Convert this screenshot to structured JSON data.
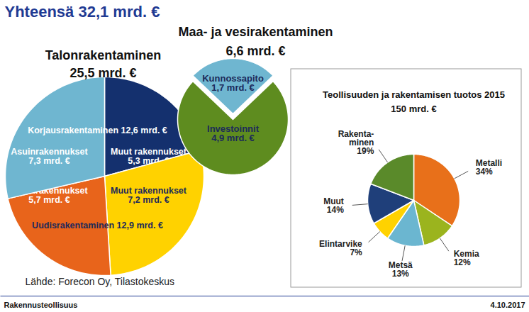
{
  "page": {
    "title": "Yhteensä 32,1 mrd. €",
    "source": "Lähde: Forecon Oy, Tilastokeskus",
    "footer": "Rakennusteollisuus",
    "date": "4.10.2017"
  },
  "chart_data": [
    {
      "type": "pie",
      "title": "Talonrakentaminen",
      "subtitle": "25,5 mrd. €",
      "categories": [
        "Muut rakennukset",
        "Muut rakennukset",
        "Asuinrakennukset",
        "Asuinrakennukset"
      ],
      "values": [
        5.3,
        7.2,
        5.7,
        7.3
      ],
      "value_labels": [
        "5,3 mrd. €",
        "7,2 mrd. €",
        "5,7 mrd. €",
        "7,3 mrd. €"
      ],
      "colors": [
        "#14306e",
        "#ffd200",
        "#e8641b",
        "#6fb6d0"
      ],
      "data_labels": true,
      "groups": [
        {
          "name": "Korjausrakentaminen",
          "label": "12,6 mrd. €"
        },
        {
          "name": "Uudisrakentaminen",
          "label": "12,9 mrd. €"
        }
      ]
    },
    {
      "type": "pie",
      "title": "Maa- ja vesirakentaminen",
      "subtitle": "6,6 mrd. €",
      "categories": [
        "Kunnossapito",
        "Investoinnit"
      ],
      "values": [
        1.7,
        4.9
      ],
      "value_labels": [
        "1,7 mrd. €",
        "4,9 mrd. €"
      ],
      "colors": [
        "#6fb6d0",
        "#5e8c1f"
      ],
      "data_labels": true
    },
    {
      "type": "pie",
      "title": "Teollisuuden ja rakentamisen tuotos 2015",
      "subtitle": "150 mrd. €",
      "categories": [
        "Metalli",
        "Kemia",
        "Metsä",
        "Elintarvike",
        "Muut",
        "Rakenta-\nminen"
      ],
      "values": [
        34,
        12,
        13,
        7,
        14,
        19
      ],
      "value_labels": [
        "34%",
        "12%",
        "13%",
        "7%",
        "14%",
        "19%"
      ],
      "colors": [
        "#e8701a",
        "#9bb41e",
        "#6bb6d0",
        "#ffd200",
        "#1f3f7a",
        "#5a8a2a"
      ],
      "data_labels": true
    }
  ]
}
